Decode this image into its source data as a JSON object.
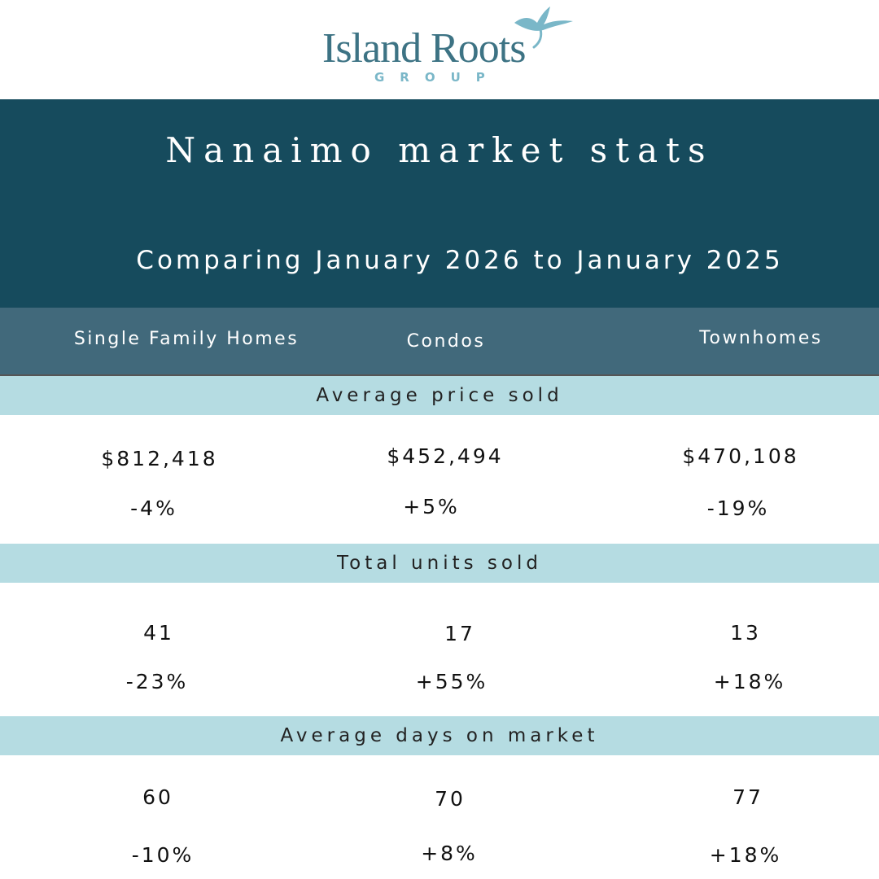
{
  "logo": {
    "name": "Island Roots",
    "group": "GROUP",
    "bird_icon": "bird-icon",
    "color": "#3d7384"
  },
  "header": {
    "title": "Nanaimo market stats",
    "subtitle": "Comparing January 2026 to January 2025",
    "background": "#164b5d"
  },
  "columns": {
    "single_family": "Single Family Homes",
    "condos": "Condos",
    "townhomes": "Townhomes",
    "background": "#41697b"
  },
  "sections": {
    "avg_price": {
      "label": "Average price sold",
      "single_family": {
        "value": "$812,418",
        "change": "-4%"
      },
      "condos": {
        "value": "$452,494",
        "change": "+5%"
      },
      "townhomes": {
        "value": "$470,108",
        "change": "-19%"
      }
    },
    "units_sold": {
      "label": "Total units sold",
      "single_family": {
        "value": "41",
        "change": "-23%"
      },
      "condos": {
        "value": "17",
        "change": "+55%"
      },
      "townhomes": {
        "value": "13",
        "change": "+18%"
      }
    },
    "days_on_market": {
      "label": "Average days on market",
      "single_family": {
        "value": "60",
        "change": "-10%"
      },
      "condos": {
        "value": "70",
        "change": "+8%"
      },
      "townhomes": {
        "value": "77",
        "change": "+18%"
      }
    },
    "band_color": "#b5dce2"
  }
}
